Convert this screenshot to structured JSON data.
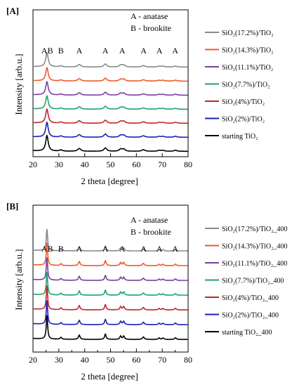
{
  "chart_data": [
    {
      "type": "line",
      "panel_label": "[A]",
      "xlabel": "2 theta [degree]",
      "ylabel": "Intensity [arb.u.]",
      "xlim": [
        20,
        80
      ],
      "x_ticks": [
        20,
        30,
        40,
        50,
        60,
        70,
        80
      ],
      "annotation_key": [
        "A - anatase",
        "B - brookite"
      ],
      "peak_labels": [
        {
          "text": "AB",
          "x": 25.5
        },
        {
          "text": "B",
          "x": 30.8
        },
        {
          "text": "A",
          "x": 37.9
        },
        {
          "text": "A",
          "x": 48.0
        },
        {
          "text": "A",
          "x": 54.5
        },
        {
          "text": "A",
          "x": 62.8
        },
        {
          "text": "A",
          "x": 68.9
        },
        {
          "text": "A",
          "x": 75.0
        }
      ],
      "series": [
        {
          "name": "starting TiO₂",
          "color": "#000000",
          "peak_height": 1.0
        },
        {
          "name": "SiO₂(2%)/TiO₂",
          "color": "#1f1fb4",
          "peak_height": 0.95
        },
        {
          "name": "SiO₂(4%)/TiO₂",
          "color": "#c0272d",
          "peak_height": 0.9
        },
        {
          "name": "SiO₂(7.7%)/TiO₂",
          "color": "#1ea36b",
          "peak_height": 0.85
        },
        {
          "name": "SiO₂(11.1%)/TiO₂",
          "color": "#7a3fa0",
          "peak_height": 0.85
        },
        {
          "name": "SiO₂(14.3%)/TiO₂",
          "color": "#f05a28",
          "peak_height": 0.85
        },
        {
          "name": "SiO₂(17.2%)/TiO₂",
          "color": "#8a8a8a",
          "peak_height": 0.9
        }
      ]
    },
    {
      "type": "line",
      "panel_label": "[B]",
      "xlabel": "2 theta [degree]",
      "ylabel": "Intensity [arb.u.]",
      "xlim": [
        20,
        80
      ],
      "x_ticks": [
        20,
        25,
        30,
        35,
        40,
        45,
        50,
        55,
        60,
        65,
        70,
        75,
        80
      ],
      "annotation_key": [
        "A - anatase",
        "B - brookite"
      ],
      "peak_labels": [
        {
          "text": "AB",
          "x": 25.5
        },
        {
          "text": "B",
          "x": 30.8
        },
        {
          "text": "A",
          "x": 37.9
        },
        {
          "text": "A",
          "x": 48.0
        },
        {
          "text": "A",
          "x": 54.5
        },
        {
          "text": "A",
          "x": 62.8
        },
        {
          "text": "A",
          "x": 68.9
        },
        {
          "text": "A",
          "x": 75.0
        }
      ],
      "series": [
        {
          "name": "starting TiO₂_400",
          "color": "#000000",
          "peak_height": 1.0
        },
        {
          "name": "SiO₂(2%)/TiO₂_400",
          "color": "#1f1fb4",
          "peak_height": 1.0
        },
        {
          "name": "SiO₂(4%)/TiO₂_400",
          "color": "#c0272d",
          "peak_height": 1.0
        },
        {
          "name": "SiO₂(7.7%)/TiO₂_400",
          "color": "#1ea36b",
          "peak_height": 0.95
        },
        {
          "name": "SiO₂(11.1%)/TiO₂_400",
          "color": "#7a3fa0",
          "peak_height": 0.95
        },
        {
          "name": "SiO₂(14.3%)/TiO₂_400",
          "color": "#f05a28",
          "peak_height": 0.95
        },
        {
          "name": "SiO₂(17.2%)/TiO₂_400",
          "color": "#8a8a8a",
          "peak_height": 0.9
        }
      ]
    }
  ]
}
